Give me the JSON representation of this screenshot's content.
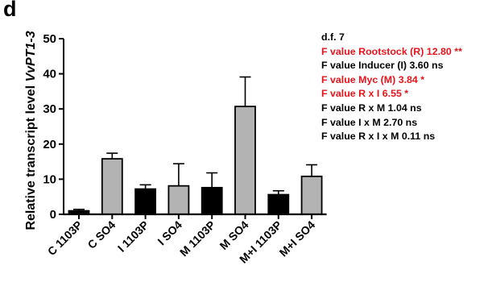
{
  "panel_label": "d",
  "colors": {
    "black_bar": "#000000",
    "gray_bar": "#b3b3b3",
    "significant_text": "#e8141c",
    "normal_text": "#000000"
  },
  "chart_data": {
    "type": "bar",
    "ylabel": "Relative transcript level VvPT1-3",
    "ylabel_parts": [
      "Relative transcript level ",
      "VvPT1-3"
    ],
    "ylim": [
      0,
      50
    ],
    "yticks": [
      0,
      10,
      20,
      30,
      40,
      50
    ],
    "grid": false,
    "categories": [
      "C 1103P",
      "C SO4",
      "I 1103P",
      "I SO4",
      "M 1103P",
      "M SO4",
      "M+I 1103P",
      "M+I SO4"
    ],
    "values": [
      1.0,
      15.8,
      7.2,
      8.1,
      7.6,
      30.7,
      5.6,
      10.8
    ],
    "errors": [
      0.4,
      1.6,
      1.2,
      6.3,
      4.2,
      8.4,
      1.1,
      3.3
    ],
    "bar_colors": [
      "black",
      "gray",
      "black",
      "gray",
      "black",
      "gray",
      "black",
      "gray"
    ]
  },
  "stats": [
    {
      "text": "d.f. 7",
      "significant": false
    },
    {
      "text": "F value Rootstock (R) 12.80 **",
      "significant": true
    },
    {
      "text": "F value Inducer (I) 3.60 ns",
      "significant": false
    },
    {
      "text": "F value Myc (M) 3.84 *",
      "significant": true
    },
    {
      "text": "F value R x I 6.55 *",
      "significant": true
    },
    {
      "text": "F value R x M 1.04 ns",
      "significant": false
    },
    {
      "text": "F value I x M 2.70 ns",
      "significant": false
    },
    {
      "text": "F value R x I x M 0.11 ns",
      "significant": false
    }
  ]
}
